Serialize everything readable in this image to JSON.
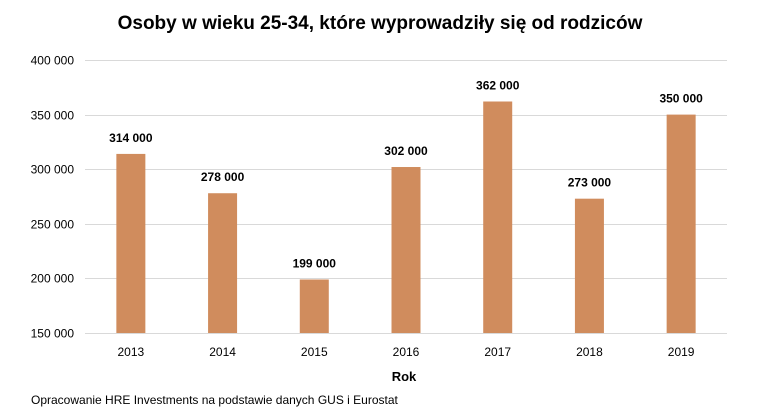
{
  "chart_data": {
    "type": "bar",
    "title": "Osoby w wieku 25-34, które wyprowadziły się od rodziców",
    "xlabel": "Rok",
    "ylabel": "",
    "categories": [
      "2013",
      "2014",
      "2015",
      "2016",
      "2017",
      "2018",
      "2019"
    ],
    "values": [
      314000,
      278000,
      199000,
      302000,
      362000,
      273000,
      350000
    ],
    "value_labels": [
      "314 000",
      "278 000",
      "199 000",
      "302 000",
      "362 000",
      "273 000",
      "350 000"
    ],
    "ylim": [
      150000,
      400000
    ],
    "yticks": [
      150000,
      200000,
      250000,
      300000,
      350000,
      400000
    ],
    "ytick_labels": [
      "150 000",
      "200 000",
      "250 000",
      "300 000",
      "350 000",
      "400 000"
    ],
    "grid": true,
    "legend": "none",
    "bar_color": "#d08c5d",
    "gridline_color": "#d9d9d9"
  },
  "source_note": "Opracowanie HRE Investments na podstawie danych GUS i Eurostat"
}
